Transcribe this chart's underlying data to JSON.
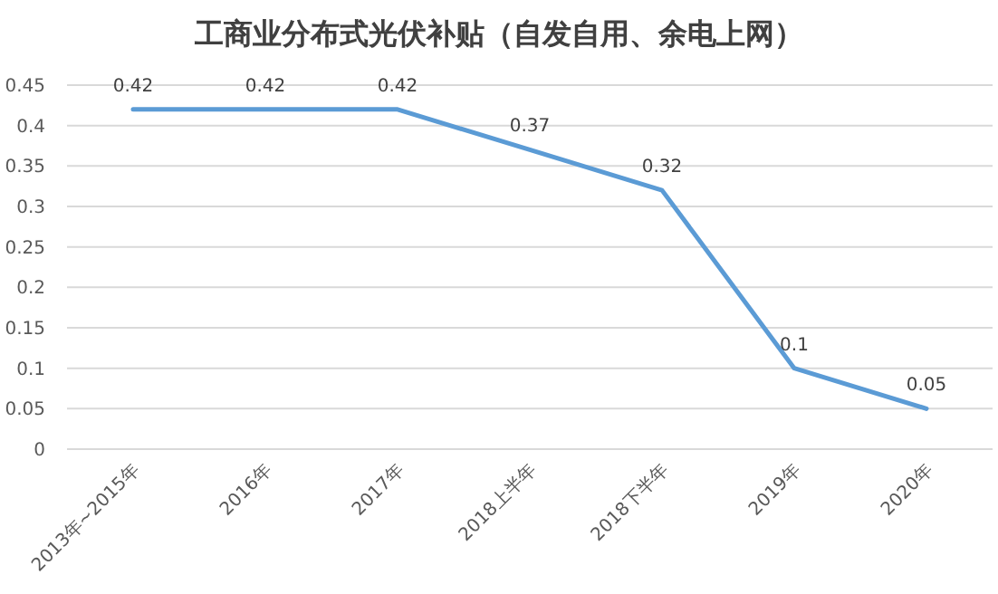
{
  "chart_data": {
    "type": "line",
    "title": "工商业分布式光伏补贴（自发自用、余电上网）",
    "categories": [
      "2013年~2015年",
      "2016年",
      "2017年",
      "2018上半年",
      "2018下半年",
      "2019年",
      "2020年"
    ],
    "series": [
      {
        "color": "#5b9bd5",
        "values": [
          0.42,
          0.42,
          0.42,
          0.37,
          0.32,
          0.1,
          0.05
        ]
      }
    ],
    "ylim": [
      0,
      0.45
    ],
    "yticks": [
      0,
      0.05,
      0.1,
      0.15,
      0.2,
      0.25,
      0.3,
      0.35,
      0.4,
      0.45
    ],
    "grid": "y",
    "data_labels": true,
    "marker": "none",
    "line_style": "solid"
  }
}
